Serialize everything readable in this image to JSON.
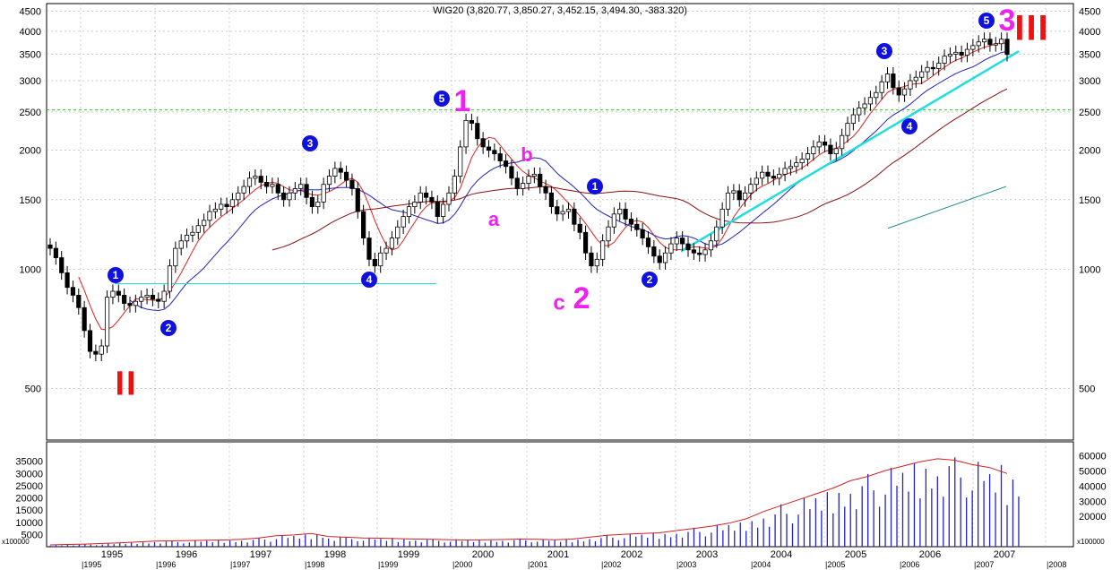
{
  "chart_data": [
    {
      "type": "candlestick",
      "title": "WIG20 (3,820.77, 3,850.27, 3,452.15, 3,494.30, -383.320)",
      "scale": "log",
      "ylim": [
        370,
        4700
      ],
      "y_ticks": [
        500,
        1000,
        1500,
        2000,
        2500,
        3000,
        3500,
        4000,
        4500
      ],
      "xlim": [
        1994.4,
        2008.6
      ],
      "x_ticks": [
        "1995",
        "1996",
        "1997",
        "1998",
        "1999",
        "2000",
        "2001",
        "2002",
        "2003",
        "2004",
        "2005",
        "2006",
        "2007",
        "2008"
      ],
      "grid": true,
      "reference_line": {
        "value": 2530,
        "color": "#33bb33"
      },
      "candles_monthly_close": [
        1130,
        1070,
        980,
        900,
        860,
        800,
        700,
        620,
        610,
        640,
        850,
        880,
        860,
        820,
        810,
        830,
        850,
        860,
        840,
        830,
        880,
        1020,
        1130,
        1180,
        1220,
        1240,
        1290,
        1330,
        1400,
        1420,
        1460,
        1440,
        1500,
        1560,
        1620,
        1700,
        1720,
        1660,
        1620,
        1640,
        1560,
        1500,
        1560,
        1600,
        1640,
        1520,
        1440,
        1480,
        1640,
        1720,
        1800,
        1760,
        1680,
        1600,
        1400,
        1200,
        1060,
        1020,
        1100,
        1130,
        1200,
        1280,
        1360,
        1440,
        1480,
        1560,
        1520,
        1480,
        1360,
        1460,
        1560,
        1720,
        2040,
        2380,
        2340,
        2140,
        2040,
        2000,
        1960,
        1880,
        1820,
        1700,
        1600,
        1650,
        1720,
        1740,
        1620,
        1560,
        1440,
        1380,
        1400,
        1420,
        1300,
        1240,
        1100,
        1020,
        1060,
        1180,
        1280,
        1380,
        1420,
        1340,
        1300,
        1260,
        1200,
        1140,
        1080,
        1040,
        1100,
        1160,
        1200,
        1160,
        1120,
        1100,
        1090,
        1120,
        1180,
        1280,
        1420,
        1560,
        1580,
        1500,
        1560,
        1640,
        1700,
        1760,
        1720,
        1700,
        1740,
        1800,
        1820,
        1860,
        1900,
        1960,
        2040,
        2100,
        2060,
        1960,
        2020,
        2180,
        2340,
        2460,
        2560,
        2620,
        2720,
        2800,
        2980,
        3120,
        2880,
        2760,
        2860,
        3000,
        3060,
        3160,
        3240,
        3220,
        3320,
        3460,
        3500,
        3540,
        3480,
        3600,
        3680,
        3760,
        3820,
        3700,
        3720,
        3820,
        3494
      ]
    },
    {
      "type": "bar",
      "unit": "x100000",
      "y_ticks_left": [
        5000,
        10000,
        15000,
        20000,
        25000,
        30000,
        35000
      ],
      "y_ticks_right": [
        20000,
        30000,
        40000,
        50000,
        60000
      ],
      "x_ticks": [
        "1995",
        "1996",
        "1997",
        "1998",
        "1999",
        "2000",
        "2001",
        "2002",
        "2003",
        "2004",
        "2005",
        "2006",
        "2007",
        "2008"
      ],
      "volume_quarterly": [
        1200,
        1500,
        1800,
        2200,
        2600,
        3200,
        3800,
        4000,
        4200,
        4400,
        4600,
        5000,
        6000,
        7500,
        8000,
        9000,
        7000,
        6500,
        6000,
        5800,
        5500,
        5200,
        5000,
        4800,
        4600,
        4700,
        4900,
        5200,
        5000,
        4800,
        5200,
        6500,
        7800,
        8500,
        9000,
        9500,
        11000,
        12500,
        14000,
        16000,
        19000,
        24000,
        28000,
        32000,
        36000,
        40000,
        45000,
        48000,
        52000,
        55000,
        58000,
        60000,
        59000,
        56000,
        54000,
        50000
      ]
    }
  ],
  "wave_labels": [
    {
      "text": "1",
      "shape": "circle"
    },
    {
      "text": "2",
      "shape": "circle"
    },
    {
      "text": "3",
      "shape": "circle"
    },
    {
      "text": "4",
      "shape": "circle"
    },
    {
      "text": "5",
      "shape": "circle"
    },
    {
      "text": "1",
      "shape": "circle"
    },
    {
      "text": "2",
      "shape": "circle"
    },
    {
      "text": "3",
      "shape": "circle"
    },
    {
      "text": "4",
      "shape": "circle"
    },
    {
      "text": "5",
      "shape": "circle"
    },
    {
      "text": "1",
      "shape": "plain"
    },
    {
      "text": "2",
      "shape": "plain"
    },
    {
      "text": "3",
      "shape": "plain"
    },
    {
      "text": "a",
      "shape": "plain"
    },
    {
      "text": "b",
      "shape": "plain"
    },
    {
      "text": "c",
      "shape": "plain"
    },
    {
      "text": "II",
      "shape": "roman"
    },
    {
      "text": "III",
      "shape": "roman"
    }
  ],
  "colors": {
    "price": "#000000",
    "ma_red": "#dd2222",
    "ma_blue": "#2222bb",
    "ma_darkred": "#881111",
    "ma_teal": "#118888",
    "trend_cyan": "#22dddd",
    "grid": "#aaaaaa",
    "wave_circle": "#1111dd",
    "wave_magenta": "#ee22ee",
    "roman_red": "#ee1111",
    "volume_bar": "#2222cc",
    "volume_ma": "#cc2222"
  }
}
